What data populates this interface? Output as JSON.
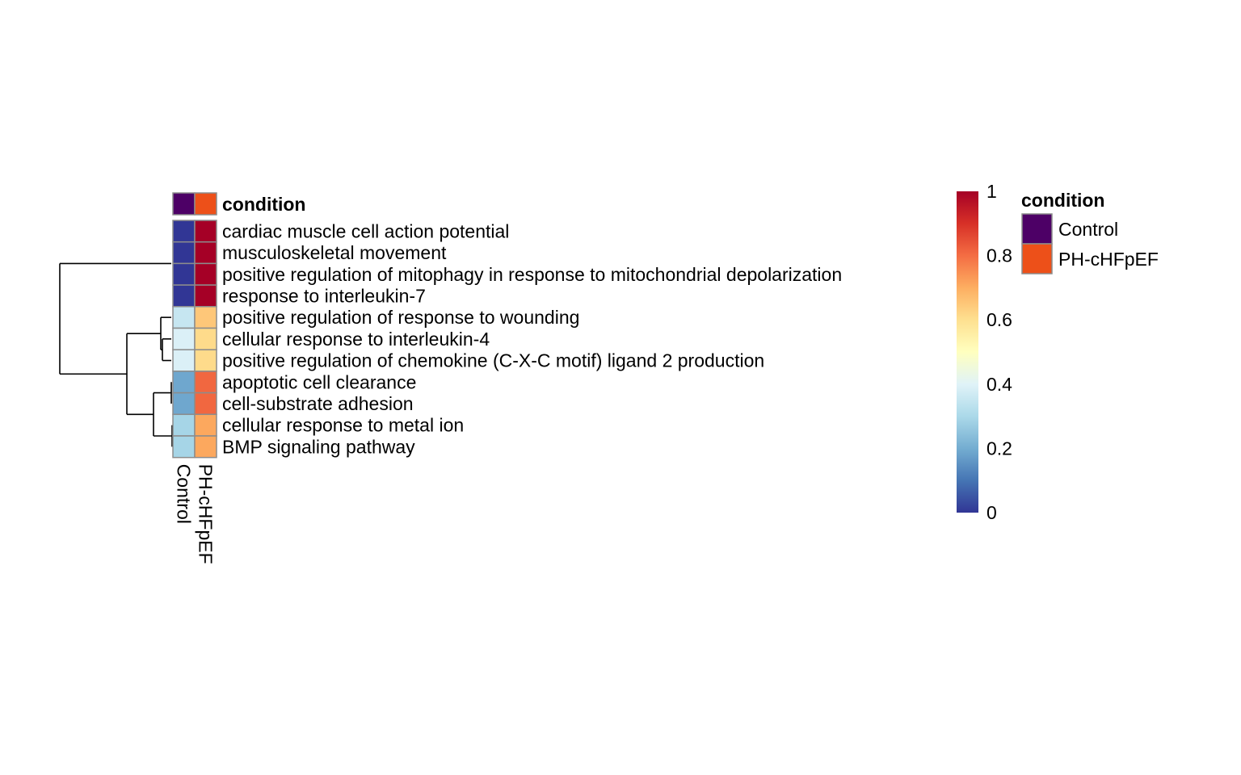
{
  "chart_data": {
    "type": "heatmap",
    "columns": [
      "Control",
      "PH-cHFpEF"
    ],
    "annotation": {
      "name": "condition",
      "values": [
        "Control",
        "PH-cHFpEF"
      ],
      "legend_title": "condition",
      "legend_entries": [
        {
          "label": "Control",
          "color": "#4d0066"
        },
        {
          "label": "PH-cHFpEF",
          "color": "#ed5019"
        }
      ]
    },
    "rows": [
      "cardiac muscle cell action potential",
      "musculoskeletal movement",
      "positive regulation of mitophagy in response to mitochondrial depolarization",
      "response to interleukin-7",
      "positive regulation of response to wounding",
      "cellular response to interleukin-4",
      "positive regulation of chemokine (C-X-C motif) ligand 2 production",
      "apoptotic cell clearance",
      "cell-substrate adhesion",
      "cellular response to metal ion",
      "BMP signaling pathway"
    ],
    "values": [
      [
        0.0,
        1.0
      ],
      [
        0.0,
        1.0
      ],
      [
        0.0,
        1.0
      ],
      [
        0.0,
        1.0
      ],
      [
        0.35,
        0.65
      ],
      [
        0.39,
        0.61
      ],
      [
        0.39,
        0.61
      ],
      [
        0.19,
        0.81
      ],
      [
        0.19,
        0.81
      ],
      [
        0.29,
        0.71
      ],
      [
        0.29,
        0.71
      ]
    ],
    "colorbar": {
      "range": [
        0,
        1
      ],
      "ticks": [
        "0",
        "0.2",
        "0.4",
        "0.6",
        "0.8",
        "1"
      ],
      "tick_values": [
        0,
        0.2,
        0.4,
        0.6,
        0.8,
        1
      ],
      "palette": [
        "#313695",
        "#4575b4",
        "#74add1",
        "#abd9e9",
        "#e0f3f8",
        "#ffffbf",
        "#fee090",
        "#fdae61",
        "#f46d43",
        "#d73027",
        "#a50026"
      ]
    },
    "row_dendrogram": "((r0,r1,r2,r3),((r4,(r5,r6)),((r7,r8),(r9,r10))))",
    "legend_position": "right"
  }
}
